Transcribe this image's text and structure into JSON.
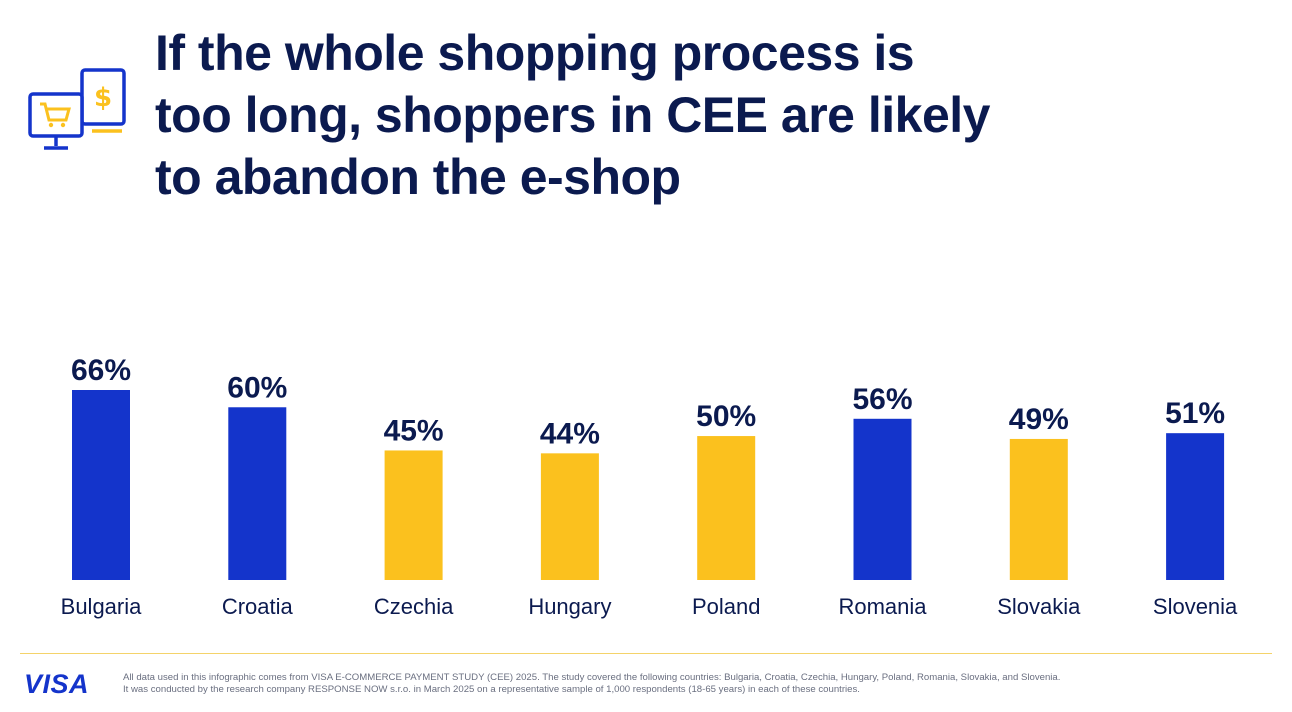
{
  "title": {
    "line1": "If the whole shopping process is",
    "line2": "too long, shoppers in CEE are likely",
    "line3": "to abandon the e-shop"
  },
  "header_icon": {
    "icon": "shopping-cart-payment-icon",
    "colors": {
      "outline": "#1434cb",
      "accent": "#fbc11e"
    }
  },
  "chart_data": {
    "type": "bar",
    "categories": [
      "Bulgaria",
      "Croatia",
      "Czechia",
      "Hungary",
      "Poland",
      "Romania",
      "Slovakia",
      "Slovenia"
    ],
    "values": [
      66,
      60,
      45,
      44,
      50,
      56,
      49,
      51
    ],
    "value_labels": [
      "66%",
      "60%",
      "45%",
      "44%",
      "50%",
      "56%",
      "49%",
      "51%"
    ],
    "bar_colors": [
      "#1434cb",
      "#1434cb",
      "#fbc11e",
      "#fbc11e",
      "#fbc11e",
      "#1434cb",
      "#fbc11e",
      "#1434cb"
    ],
    "ylim": [
      0,
      66
    ],
    "grid": false,
    "legend": "none"
  },
  "footer": {
    "logo": "VISA",
    "note_line1": "All data used in this infographic comes from VISA E-COMMERCE PAYMENT STUDY (CEE) 2025. The study covered the following countries: Bulgaria, Croatia, Czechia, Hungary, Poland, Romania, Slovakia, and Slovenia.",
    "note_line2": "It was conducted by the research company RESPONSE NOW s.r.o. in March 2025 on a representative sample of 1,000 respondents (18-65 years) in each of these countries."
  },
  "colors": {
    "title": "#0b1a4f",
    "brand_blue": "#1434cb",
    "brand_yellow": "#fbc11e",
    "footnote": "#6a6f80"
  }
}
